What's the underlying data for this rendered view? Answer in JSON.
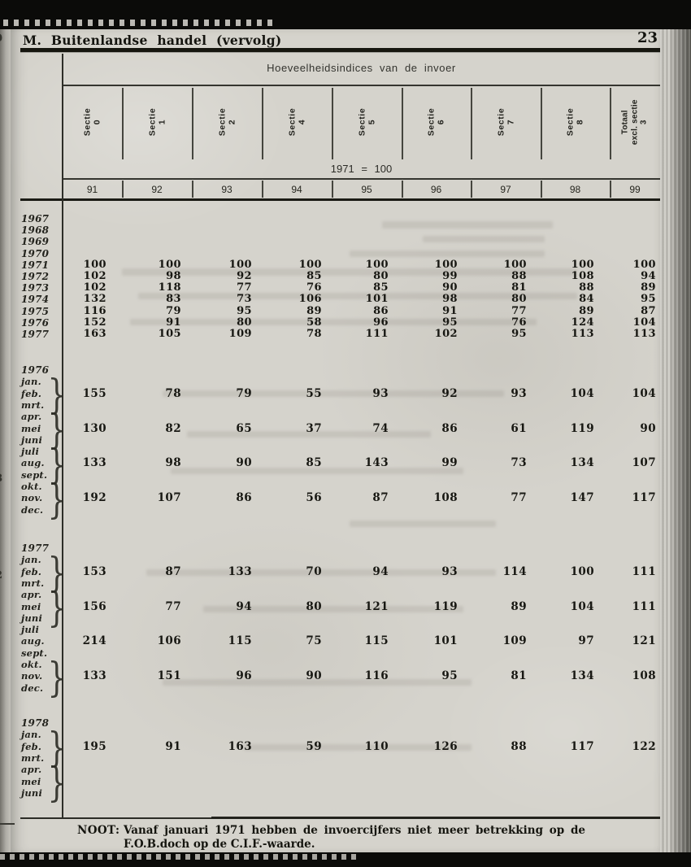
{
  "page": {
    "section_title": "M. Buitenlandse handel (vervolg)",
    "page_number": "23"
  },
  "table": {
    "caption": "Hoeveelheidsindices van de invoer",
    "base_note": "1971 = 100",
    "column_headers": [
      {
        "lines": [
          "Sectie",
          "0"
        ]
      },
      {
        "lines": [
          "Sectie",
          "1"
        ]
      },
      {
        "lines": [
          "Sectie",
          "2"
        ]
      },
      {
        "lines": [
          "Sectie",
          "4"
        ]
      },
      {
        "lines": [
          "Sectie",
          "5"
        ]
      },
      {
        "lines": [
          "Sectie",
          "6"
        ]
      },
      {
        "lines": [
          "Sectie",
          "7"
        ]
      },
      {
        "lines": [
          "Sectie",
          "8"
        ]
      },
      {
        "lines": [
          "Totaal",
          "excl. sectie",
          "3"
        ]
      }
    ],
    "column_codes": [
      "91",
      "92",
      "93",
      "94",
      "95",
      "96",
      "97",
      "98",
      "99"
    ],
    "year_rows": [
      {
        "label": "1967",
        "values": [
          "",
          "",
          "",
          "",
          "",
          "",
          "",
          "",
          ""
        ]
      },
      {
        "label": "1968",
        "values": [
          "",
          "",
          "",
          "",
          "",
          "",
          "",
          "",
          ""
        ]
      },
      {
        "label": "1969",
        "values": [
          "",
          "",
          "",
          "",
          "",
          "",
          "",
          "",
          ""
        ]
      },
      {
        "label": "1970",
        "values": [
          "",
          "",
          "",
          "",
          "",
          "",
          "",
          "",
          ""
        ]
      },
      {
        "label": "1971",
        "values": [
          "100",
          "100",
          "100",
          "100",
          "100",
          "100",
          "100",
          "100",
          "100"
        ]
      },
      {
        "label": "1972",
        "values": [
          "102",
          "98",
          "92",
          "85",
          "80",
          "99",
          "88",
          "108",
          "94"
        ]
      },
      {
        "label": "1973",
        "values": [
          "102",
          "118",
          "77",
          "76",
          "85",
          "90",
          "81",
          "88",
          "89"
        ]
      },
      {
        "label": "1974",
        "values": [
          "132",
          "83",
          "73",
          "106",
          "101",
          "98",
          "80",
          "84",
          "95"
        ]
      },
      {
        "label": "1975",
        "values": [
          "116",
          "79",
          "95",
          "89",
          "86",
          "91",
          "77",
          "89",
          "87"
        ]
      },
      {
        "label": "1976",
        "values": [
          "152",
          "91",
          "80",
          "58",
          "96",
          "95",
          "76",
          "124",
          "104"
        ]
      },
      {
        "label": "1977",
        "values": [
          "163",
          "105",
          "109",
          "78",
          "111",
          "102",
          "95",
          "113",
          "113"
        ]
      }
    ],
    "month_sections": [
      {
        "year": "1976",
        "groups": [
          {
            "months": [
              "jan.",
              "feb.",
              "mrt."
            ],
            "brace": true,
            "values": [
              "155",
              "78",
              "79",
              "55",
              "93",
              "92",
              "93",
              "104",
              "104"
            ]
          },
          {
            "months": [
              "apr.",
              "mei",
              "juni"
            ],
            "brace": true,
            "values": [
              "130",
              "82",
              "65",
              "37",
              "74",
              "86",
              "61",
              "119",
              "90"
            ]
          },
          {
            "months": [
              "juli",
              "aug.",
              "sept."
            ],
            "brace": true,
            "values": [
              "133",
              "98",
              "90",
              "85",
              "143",
              "99",
              "73",
              "134",
              "107"
            ]
          },
          {
            "months": [
              "okt.",
              "nov.",
              "dec."
            ],
            "brace": true,
            "values": [
              "192",
              "107",
              "86",
              "56",
              "87",
              "108",
              "77",
              "147",
              "117"
            ]
          }
        ]
      },
      {
        "year": "1977",
        "groups": [
          {
            "months": [
              "jan.",
              "feb.",
              "mrt."
            ],
            "brace": true,
            "values": [
              "153",
              "87",
              "133",
              "70",
              "94",
              "93",
              "114",
              "100",
              "111"
            ]
          },
          {
            "months": [
              "apr.",
              "mei",
              "juni"
            ],
            "brace": true,
            "values": [
              "156",
              "77",
              "94",
              "80",
              "121",
              "119",
              "89",
              "104",
              "111"
            ]
          },
          {
            "months": [
              "juli",
              "aug.",
              "sept."
            ],
            "brace": false,
            "values": [
              "214",
              "106",
              "115",
              "75",
              "115",
              "101",
              "109",
              "97",
              "121"
            ]
          },
          {
            "months": [
              "okt.",
              "nov.",
              "dec."
            ],
            "brace": true,
            "values": [
              "133",
              "151",
              "96",
              "90",
              "116",
              "95",
              "81",
              "134",
              "108"
            ]
          }
        ]
      },
      {
        "year": "1978",
        "groups": [
          {
            "months": [
              "jan.",
              "feb.",
              "mrt."
            ],
            "brace": true,
            "values": [
              "195",
              "91",
              "163",
              "59",
              "110",
              "126",
              "88",
              "117",
              "122"
            ]
          },
          {
            "months": [
              "apr.",
              "mei",
              "juni"
            ],
            "brace": true,
            "values": [
              "",
              "",
              "",
              "",
              "",
              "",
              "",
              "",
              ""
            ]
          }
        ]
      }
    ]
  },
  "footnote": {
    "label": "NOOT:",
    "lines": [
      "Vanaf januari 1971 hebben de invoercijfers niet meer betrekking op de",
      "F.O.B.doch op de C.I.F.-waarde."
    ]
  },
  "edge_marks": [
    "0",
    "8",
    ")",
    "2"
  ]
}
